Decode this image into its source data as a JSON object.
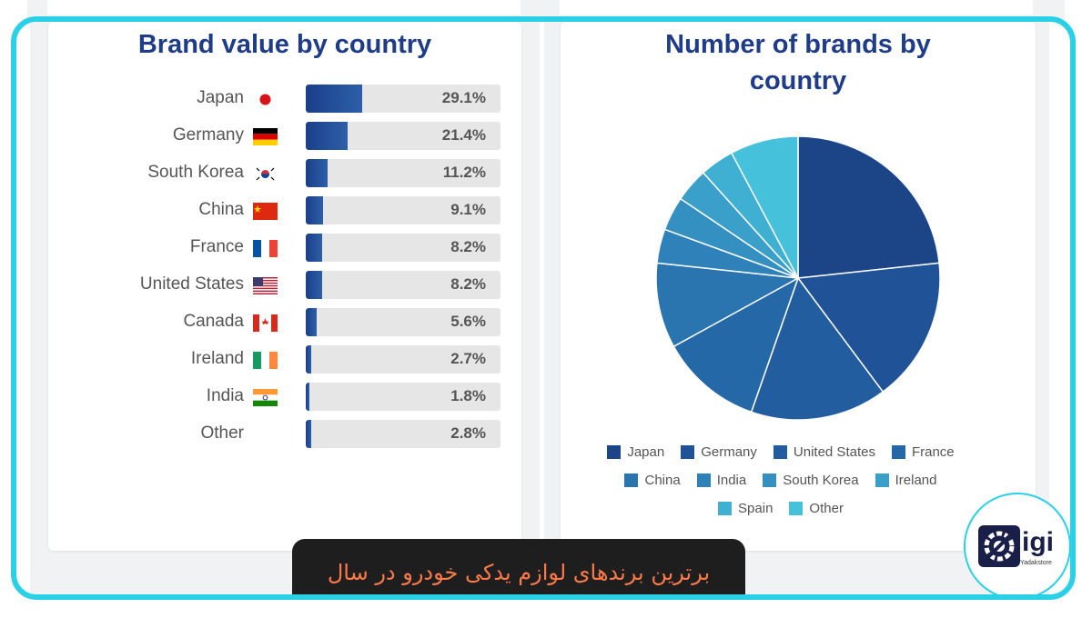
{
  "left_chart": {
    "title": "Brand value by country",
    "rows": [
      {
        "country": "Japan",
        "value": 29.1,
        "label": "29.1%",
        "flag": "jp"
      },
      {
        "country": "Germany",
        "value": 21.4,
        "label": "21.4%",
        "flag": "de"
      },
      {
        "country": "South Korea",
        "value": 11.2,
        "label": "11.2%",
        "flag": "kr"
      },
      {
        "country": "China",
        "value": 9.1,
        "label": "9.1%",
        "flag": "cn"
      },
      {
        "country": "France",
        "value": 8.2,
        "label": "8.2%",
        "flag": "fr"
      },
      {
        "country": "United States",
        "value": 8.2,
        "label": "8.2%",
        "flag": "us"
      },
      {
        "country": "Canada",
        "value": 5.6,
        "label": "5.6%",
        "flag": "ca"
      },
      {
        "country": "Ireland",
        "value": 2.7,
        "label": "2.7%",
        "flag": "ie"
      },
      {
        "country": "India",
        "value": 1.8,
        "label": "1.8%",
        "flag": "in"
      },
      {
        "country": "Other",
        "value": 2.8,
        "label": "2.8%",
        "flag": ""
      }
    ]
  },
  "right_chart": {
    "title_line1": "Number of brands by",
    "title_line2": "country"
  },
  "chart_data": [
    {
      "type": "bar",
      "orientation": "horizontal",
      "title": "Brand value by country",
      "categories": [
        "Japan",
        "Germany",
        "South Korea",
        "China",
        "France",
        "United States",
        "Canada",
        "Ireland",
        "India",
        "Other"
      ],
      "values": [
        29.1,
        21.4,
        11.2,
        9.1,
        8.2,
        8.2,
        5.6,
        2.7,
        1.8,
        2.8
      ],
      "xlim": [
        0,
        100
      ],
      "unit": "%"
    },
    {
      "type": "pie",
      "title": "Number of brands by country",
      "categories": [
        "Japan",
        "Germany",
        "United States",
        "France",
        "China",
        "India",
        "South Korea",
        "Ireland",
        "Spain",
        "Other"
      ],
      "values": [
        24,
        17,
        16,
        12,
        10,
        4,
        4,
        4,
        4,
        8
      ],
      "colors": [
        "#1c4587",
        "#1f5296",
        "#225d9f",
        "#2468a8",
        "#2a74b0",
        "#2f82b9",
        "#3490c1",
        "#3a9fc9",
        "#3fb0d2",
        "#45c1db"
      ],
      "legend": "bottom"
    }
  ],
  "caption": "برترین برندهای لوازم یدکی خودرو در سال",
  "logo": {
    "text": "igi",
    "sub": "Yadakstore"
  }
}
